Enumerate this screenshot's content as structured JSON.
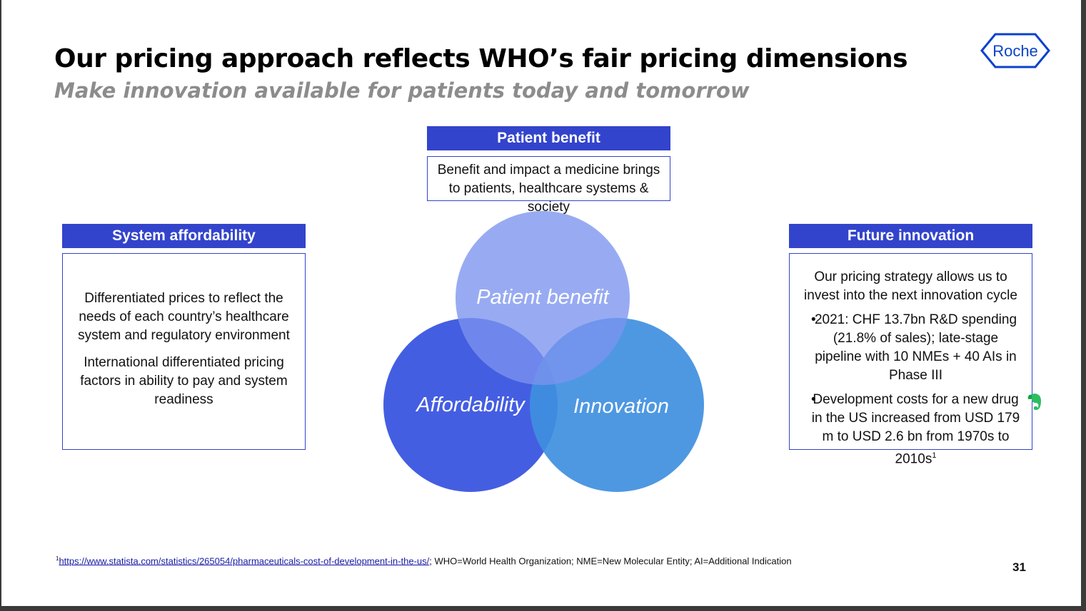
{
  "title": "Our pricing approach reflects WHO’s fair pricing dimensions",
  "subtitle": "Make innovation available for patients today and tomorrow",
  "logo": {
    "text": "Roche",
    "color": "#0b41cd"
  },
  "patient_benefit": {
    "header": "Patient benefit",
    "text": "Benefit and impact a medicine brings to patients, healthcare systems & society"
  },
  "system_affordability": {
    "header": "System affordability",
    "paragraphs": [
      "Differentiated prices to reflect the needs of each country’s healthcare system and regulatory environment",
      "International differentiated pricing factors in ability to pay and system readiness"
    ]
  },
  "future_innovation": {
    "header": "Future innovation",
    "intro": "Our pricing strategy allows us to invest into the next innovation cycle",
    "bullets": [
      "2021: CHF 13.7bn R&D spending (21.8% of sales); late-stage pipeline with 10 NMEs + 40 AIs in Phase III",
      "Development costs for a new drug in the US increased from USD 179 m to USD 2.6 bn from 1970s to 2010s"
    ],
    "bullet_footnote_mark": "1"
  },
  "venn": {
    "top_label": "Patient benefit",
    "left_label": "Affordability",
    "right_label": "Innovation",
    "colors": {
      "top": "#7b93ee",
      "left": "#3a55e0",
      "right": "#3f8fe0"
    }
  },
  "footnote": {
    "mark": "1",
    "link": "https://www.statista.com/statistics/265054/pharmaceuticals-cost-of-development-in-the-us/",
    "text": "; WHO=World Health Organization; NME=New Molecular Entity; AI=Additional Indication"
  },
  "page_number": "31",
  "colors": {
    "accent": "#3344cc",
    "subtitle": "#8c8c8c",
    "evernote": "#2dbe60"
  },
  "icons": [
    "roche-logo-icon",
    "evernote-icon"
  ]
}
